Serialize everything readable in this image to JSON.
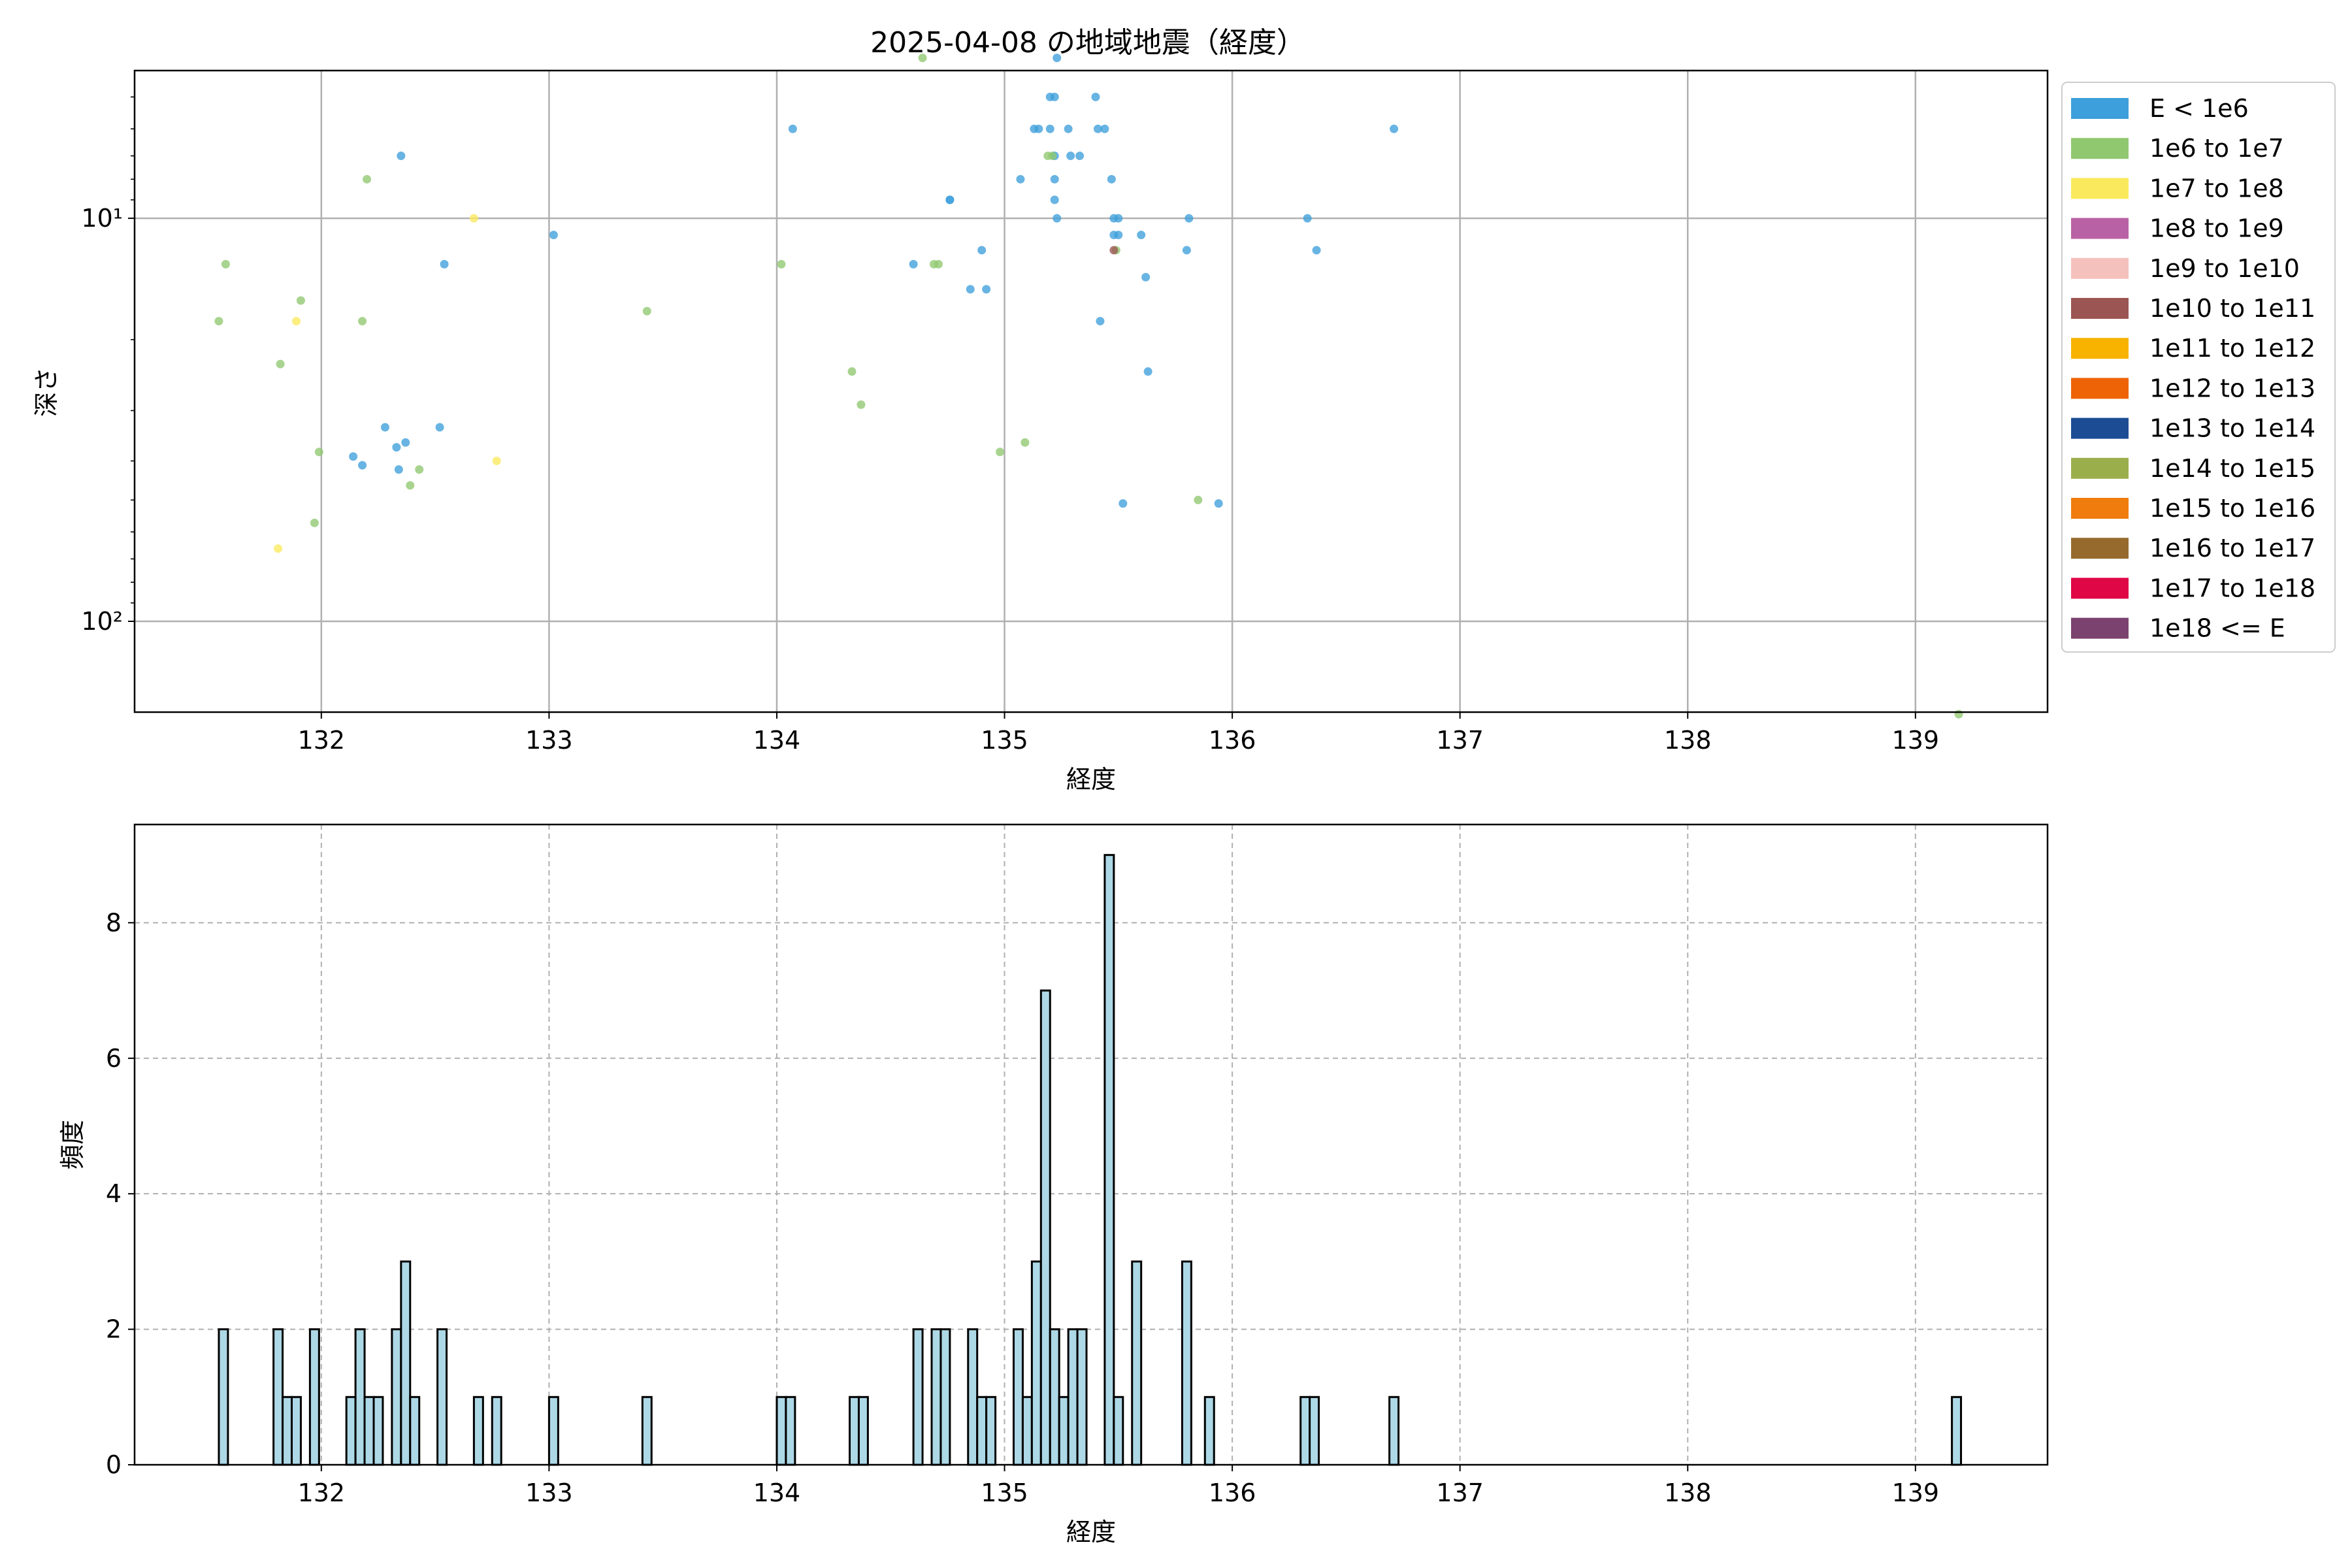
{
  "chart_data": [
    {
      "type": "scatter",
      "title": "2025-04-08 の地域地震（経度）",
      "xlabel": "経度",
      "ylabel": "深さ",
      "xlim": [
        131.18,
        139.58
      ],
      "ylim_log": [
        168,
        4.3
      ],
      "y_scale": "log",
      "y_inverted": true,
      "x_ticks": [
        "132",
        "133",
        "134",
        "135",
        "136",
        "137",
        "138",
        "139"
      ],
      "y_tick_labels": [
        {
          "value": 10,
          "label": "10¹"
        },
        {
          "value": 100,
          "label": "10²"
        }
      ],
      "grid": true,
      "legend_position": "right-outside-top",
      "legend": [
        {
          "label": "E < 1e6",
          "color": "#3d9fdb"
        },
        {
          "label": "1e6 to 1e7",
          "color": "#90c870"
        },
        {
          "label": "1e7 to 1e8",
          "color": "#fbe95d"
        },
        {
          "label": "1e8 to 1e9",
          "color": "#b961a5"
        },
        {
          "label": "1e9 to 1e10",
          "color": "#f5c1bd"
        },
        {
          "label": "1e10 to 1e11",
          "color": "#9b5552"
        },
        {
          "label": "1e11 to 1e12",
          "color": "#f7b300"
        },
        {
          "label": "1e12 to 1e13",
          "color": "#ee6306"
        },
        {
          "label": "1e13 to 1e14",
          "color": "#1c4c94"
        },
        {
          "label": "1e14 to 1e15",
          "color": "#9bae4c"
        },
        {
          "label": "1e15 to 1e16",
          "color": "#ef7c0c"
        },
        {
          "label": "1e16 to 1e17",
          "color": "#966a2d"
        },
        {
          "label": "1e17 to 1e18",
          "color": "#df0746"
        },
        {
          "label": "1e18 <= E",
          "color": "#7b416f"
        }
      ],
      "series": [
        {
          "category": 0,
          "points": [
            [
              132.35,
              7
            ],
            [
              132.54,
              13
            ],
            [
              133.02,
              11
            ],
            [
              132.14,
              39
            ],
            [
              132.18,
              41
            ],
            [
              132.28,
              33
            ],
            [
              132.33,
              37
            ],
            [
              132.37,
              36
            ],
            [
              132.34,
              42
            ],
            [
              132.52,
              33
            ],
            [
              134.07,
              6
            ],
            [
              134.6,
              13
            ],
            [
              134.76,
              9
            ],
            [
              134.85,
              15
            ],
            [
              134.9,
              12
            ],
            [
              134.92,
              15
            ],
            [
              135.07,
              8
            ],
            [
              135.13,
              6
            ],
            [
              135.15,
              6
            ],
            [
              135.2,
              6
            ],
            [
              135.2,
              5
            ],
            [
              135.22,
              5
            ],
            [
              135.22,
              7
            ],
            [
              135.22,
              8
            ],
            [
              135.22,
              9
            ],
            [
              135.23,
              10
            ],
            [
              135.23,
              4
            ],
            [
              135.28,
              6
            ],
            [
              135.29,
              7
            ],
            [
              135.33,
              7
            ],
            [
              135.4,
              5
            ],
            [
              135.41,
              6
            ],
            [
              135.44,
              6
            ],
            [
              135.47,
              8
            ],
            [
              135.48,
              10
            ],
            [
              135.48,
              11
            ],
            [
              135.5,
              11
            ],
            [
              135.5,
              10
            ],
            [
              135.42,
              18
            ],
            [
              135.52,
              51
            ],
            [
              135.6,
              11
            ],
            [
              135.62,
              14
            ],
            [
              135.63,
              24
            ],
            [
              135.8,
              12
            ],
            [
              135.81,
              10
            ],
            [
              135.94,
              51
            ],
            [
              136.33,
              10
            ],
            [
              136.37,
              12
            ],
            [
              136.71,
              6
            ],
            [
              134.76,
              9
            ]
          ]
        },
        {
          "category": 1,
          "points": [
            [
              131.58,
              13
            ],
            [
              131.55,
              18
            ],
            [
              131.82,
              23
            ],
            [
              131.91,
              16
            ],
            [
              131.99,
              38
            ],
            [
              131.97,
              57
            ],
            [
              132.18,
              18
            ],
            [
              132.2,
              8
            ],
            [
              132.39,
              46
            ],
            [
              132.43,
              42
            ],
            [
              133.43,
              17
            ],
            [
              134.02,
              13
            ],
            [
              134.33,
              24
            ],
            [
              134.37,
              29
            ],
            [
              134.64,
              4
            ],
            [
              134.69,
              13
            ],
            [
              134.71,
              13
            ],
            [
              134.98,
              38
            ],
            [
              135.09,
              36
            ],
            [
              135.19,
              7
            ],
            [
              135.21,
              7
            ],
            [
              135.49,
              12
            ],
            [
              135.85,
              50
            ],
            [
              139.19,
              170
            ]
          ]
        },
        {
          "category": 2,
          "points": [
            [
              131.81,
              66
            ],
            [
              131.89,
              18
            ],
            [
              132.67,
              10
            ],
            [
              132.77,
              40
            ]
          ]
        },
        {
          "category": 5,
          "points": [
            [
              135.48,
              12
            ]
          ]
        }
      ]
    },
    {
      "type": "bar",
      "title": "",
      "xlabel": "経度",
      "ylabel": "頻度",
      "xlim": [
        131.18,
        139.58
      ],
      "ylim": [
        0,
        9.45
      ],
      "x_ticks": [
        "132",
        "133",
        "134",
        "135",
        "136",
        "137",
        "138",
        "139"
      ],
      "y_ticks": [
        "0",
        "2",
        "4",
        "6",
        "8"
      ],
      "grid": true,
      "bar_color": "#add8e6",
      "bin_width": 0.04,
      "bins": [
        [
          131.55,
          2
        ],
        [
          131.79,
          2
        ],
        [
          131.83,
          1
        ],
        [
          131.87,
          1
        ],
        [
          131.95,
          2
        ],
        [
          132.11,
          1
        ],
        [
          132.15,
          2
        ],
        [
          132.19,
          1
        ],
        [
          132.23,
          1
        ],
        [
          132.31,
          2
        ],
        [
          132.35,
          3
        ],
        [
          132.39,
          1
        ],
        [
          132.51,
          2
        ],
        [
          132.67,
          1
        ],
        [
          132.75,
          1
        ],
        [
          133.0,
          1
        ],
        [
          133.41,
          1
        ],
        [
          134.0,
          1
        ],
        [
          134.04,
          1
        ],
        [
          134.32,
          1
        ],
        [
          134.36,
          1
        ],
        [
          134.6,
          2
        ],
        [
          134.68,
          2
        ],
        [
          134.72,
          2
        ],
        [
          134.84,
          2
        ],
        [
          134.88,
          1
        ],
        [
          134.92,
          1
        ],
        [
          135.04,
          2
        ],
        [
          135.08,
          1
        ],
        [
          135.12,
          3
        ],
        [
          135.16,
          7
        ],
        [
          135.2,
          2
        ],
        [
          135.24,
          1
        ],
        [
          135.28,
          2
        ],
        [
          135.32,
          2
        ],
        [
          135.44,
          9
        ],
        [
          135.48,
          1
        ],
        [
          135.56,
          3
        ],
        [
          135.78,
          3
        ],
        [
          135.88,
          1
        ],
        [
          136.3,
          1
        ],
        [
          136.34,
          1
        ],
        [
          136.69,
          1
        ],
        [
          139.16,
          1
        ]
      ]
    }
  ]
}
